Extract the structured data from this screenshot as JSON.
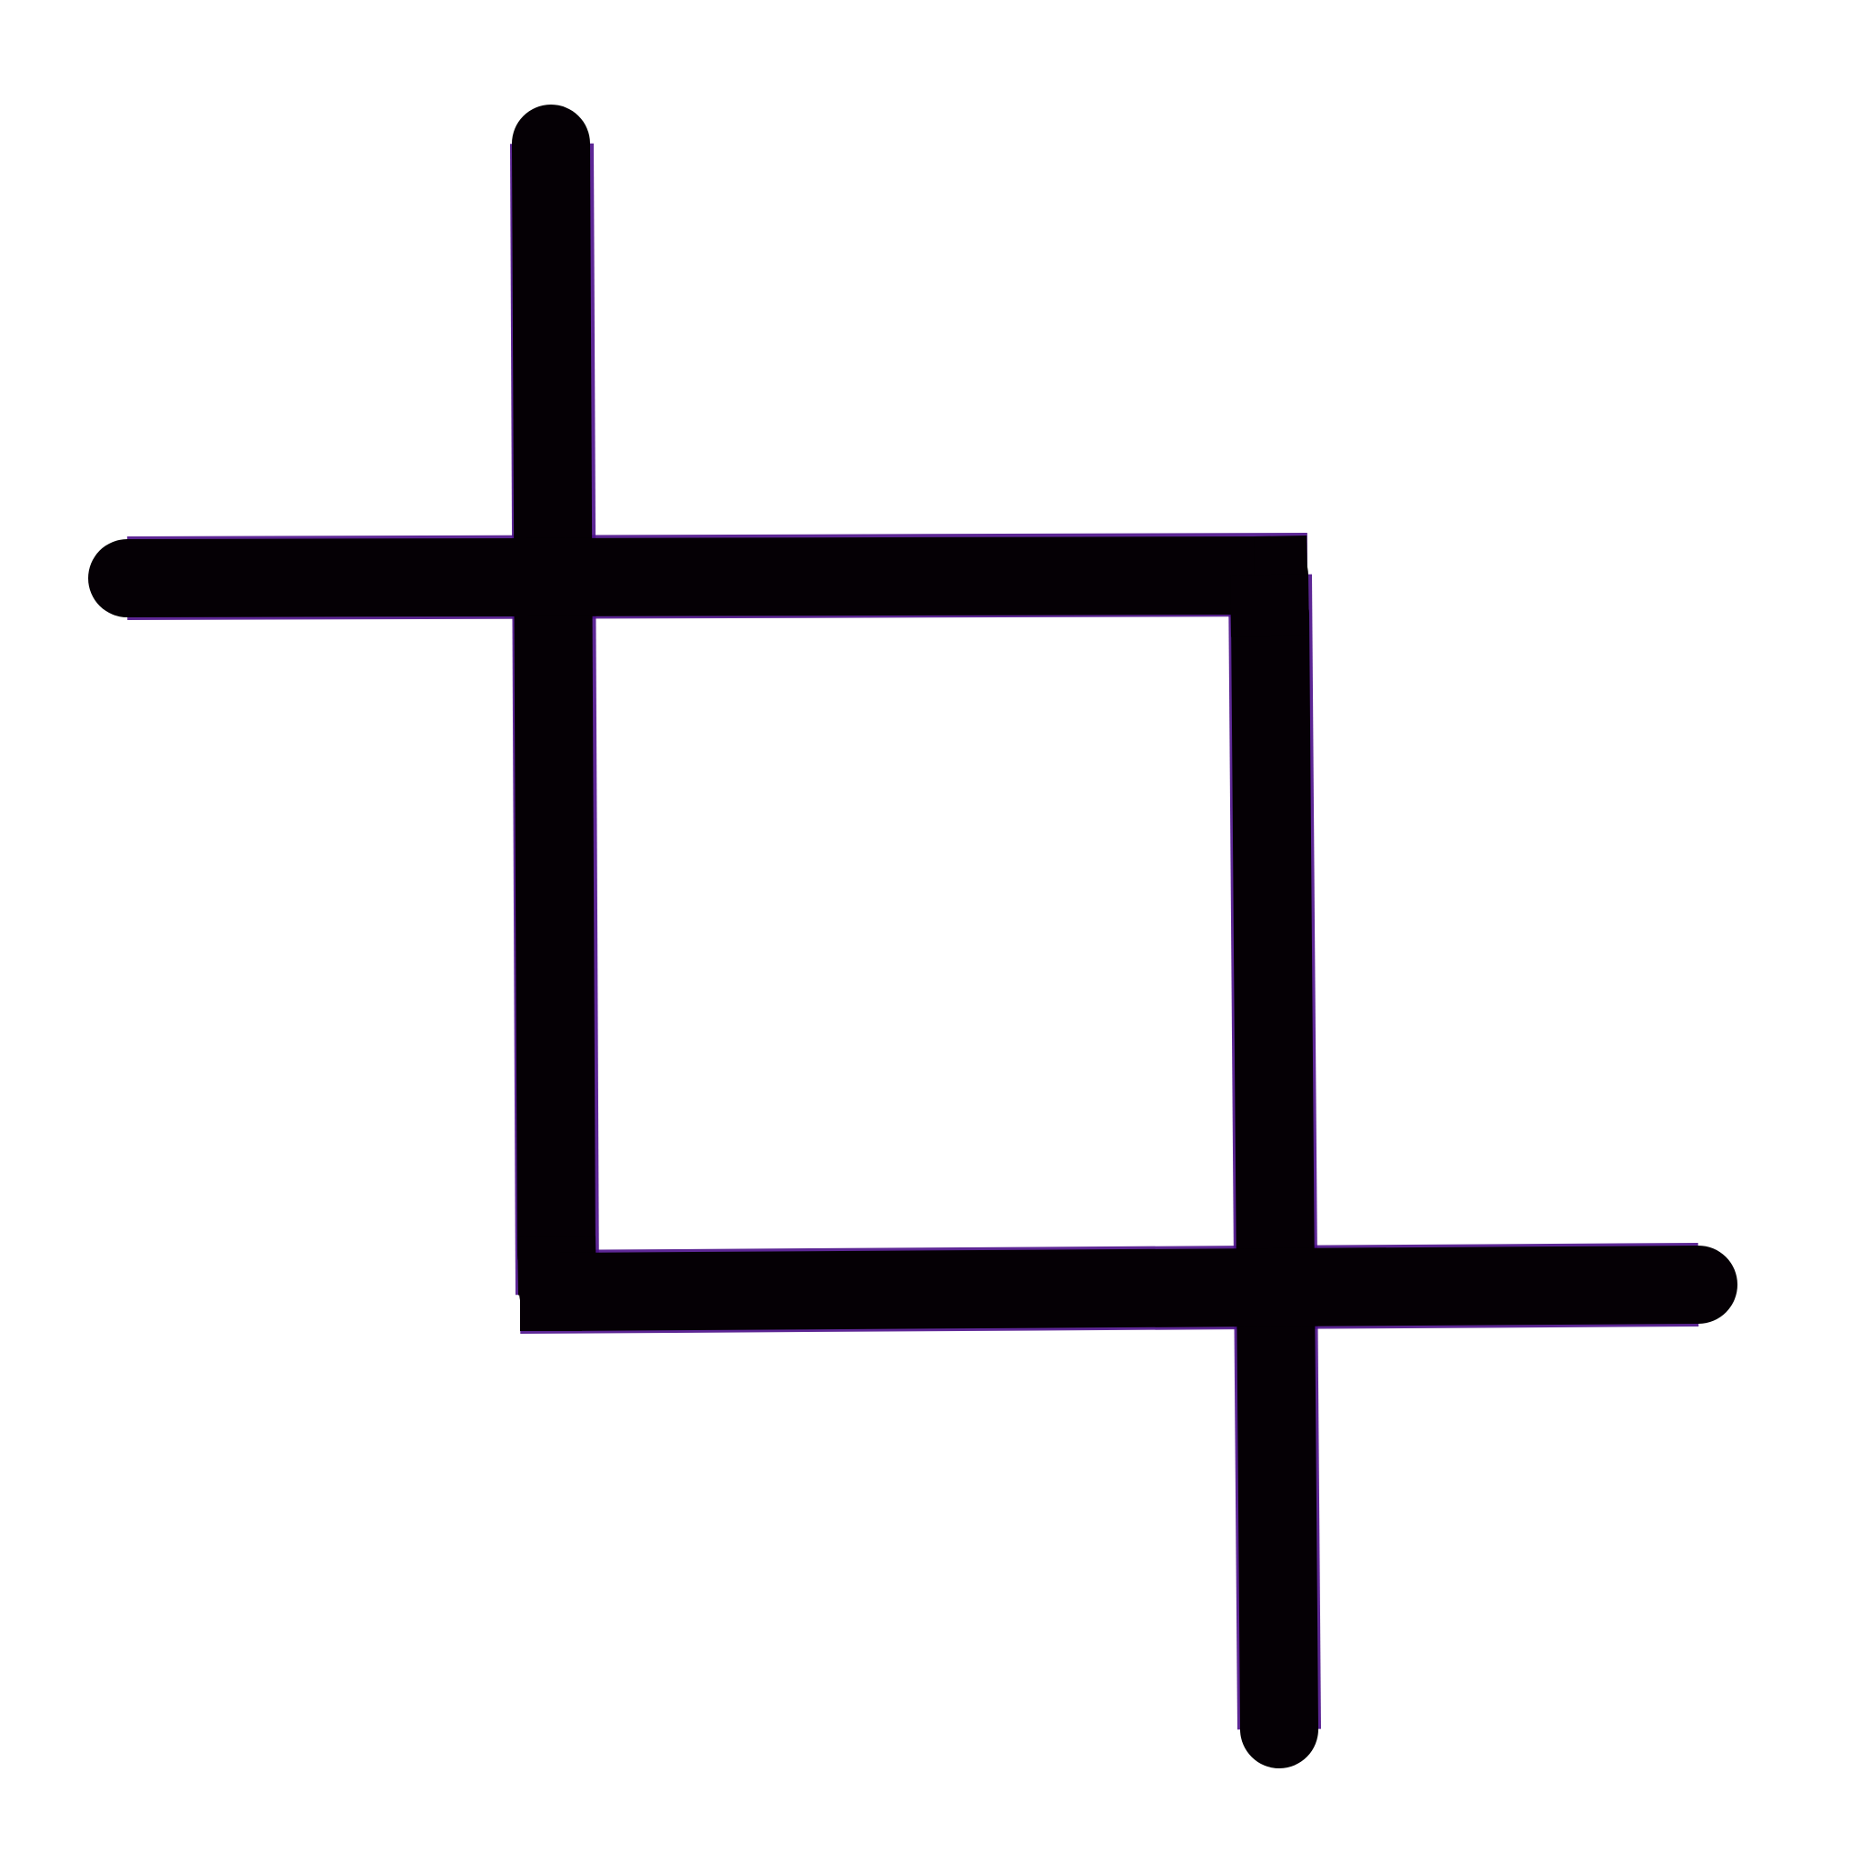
{
  "icon": {
    "name": "crop-icon",
    "stroke_color": "#050005",
    "edge_color": "#4b0f8a",
    "background_color": "#ffffff"
  }
}
